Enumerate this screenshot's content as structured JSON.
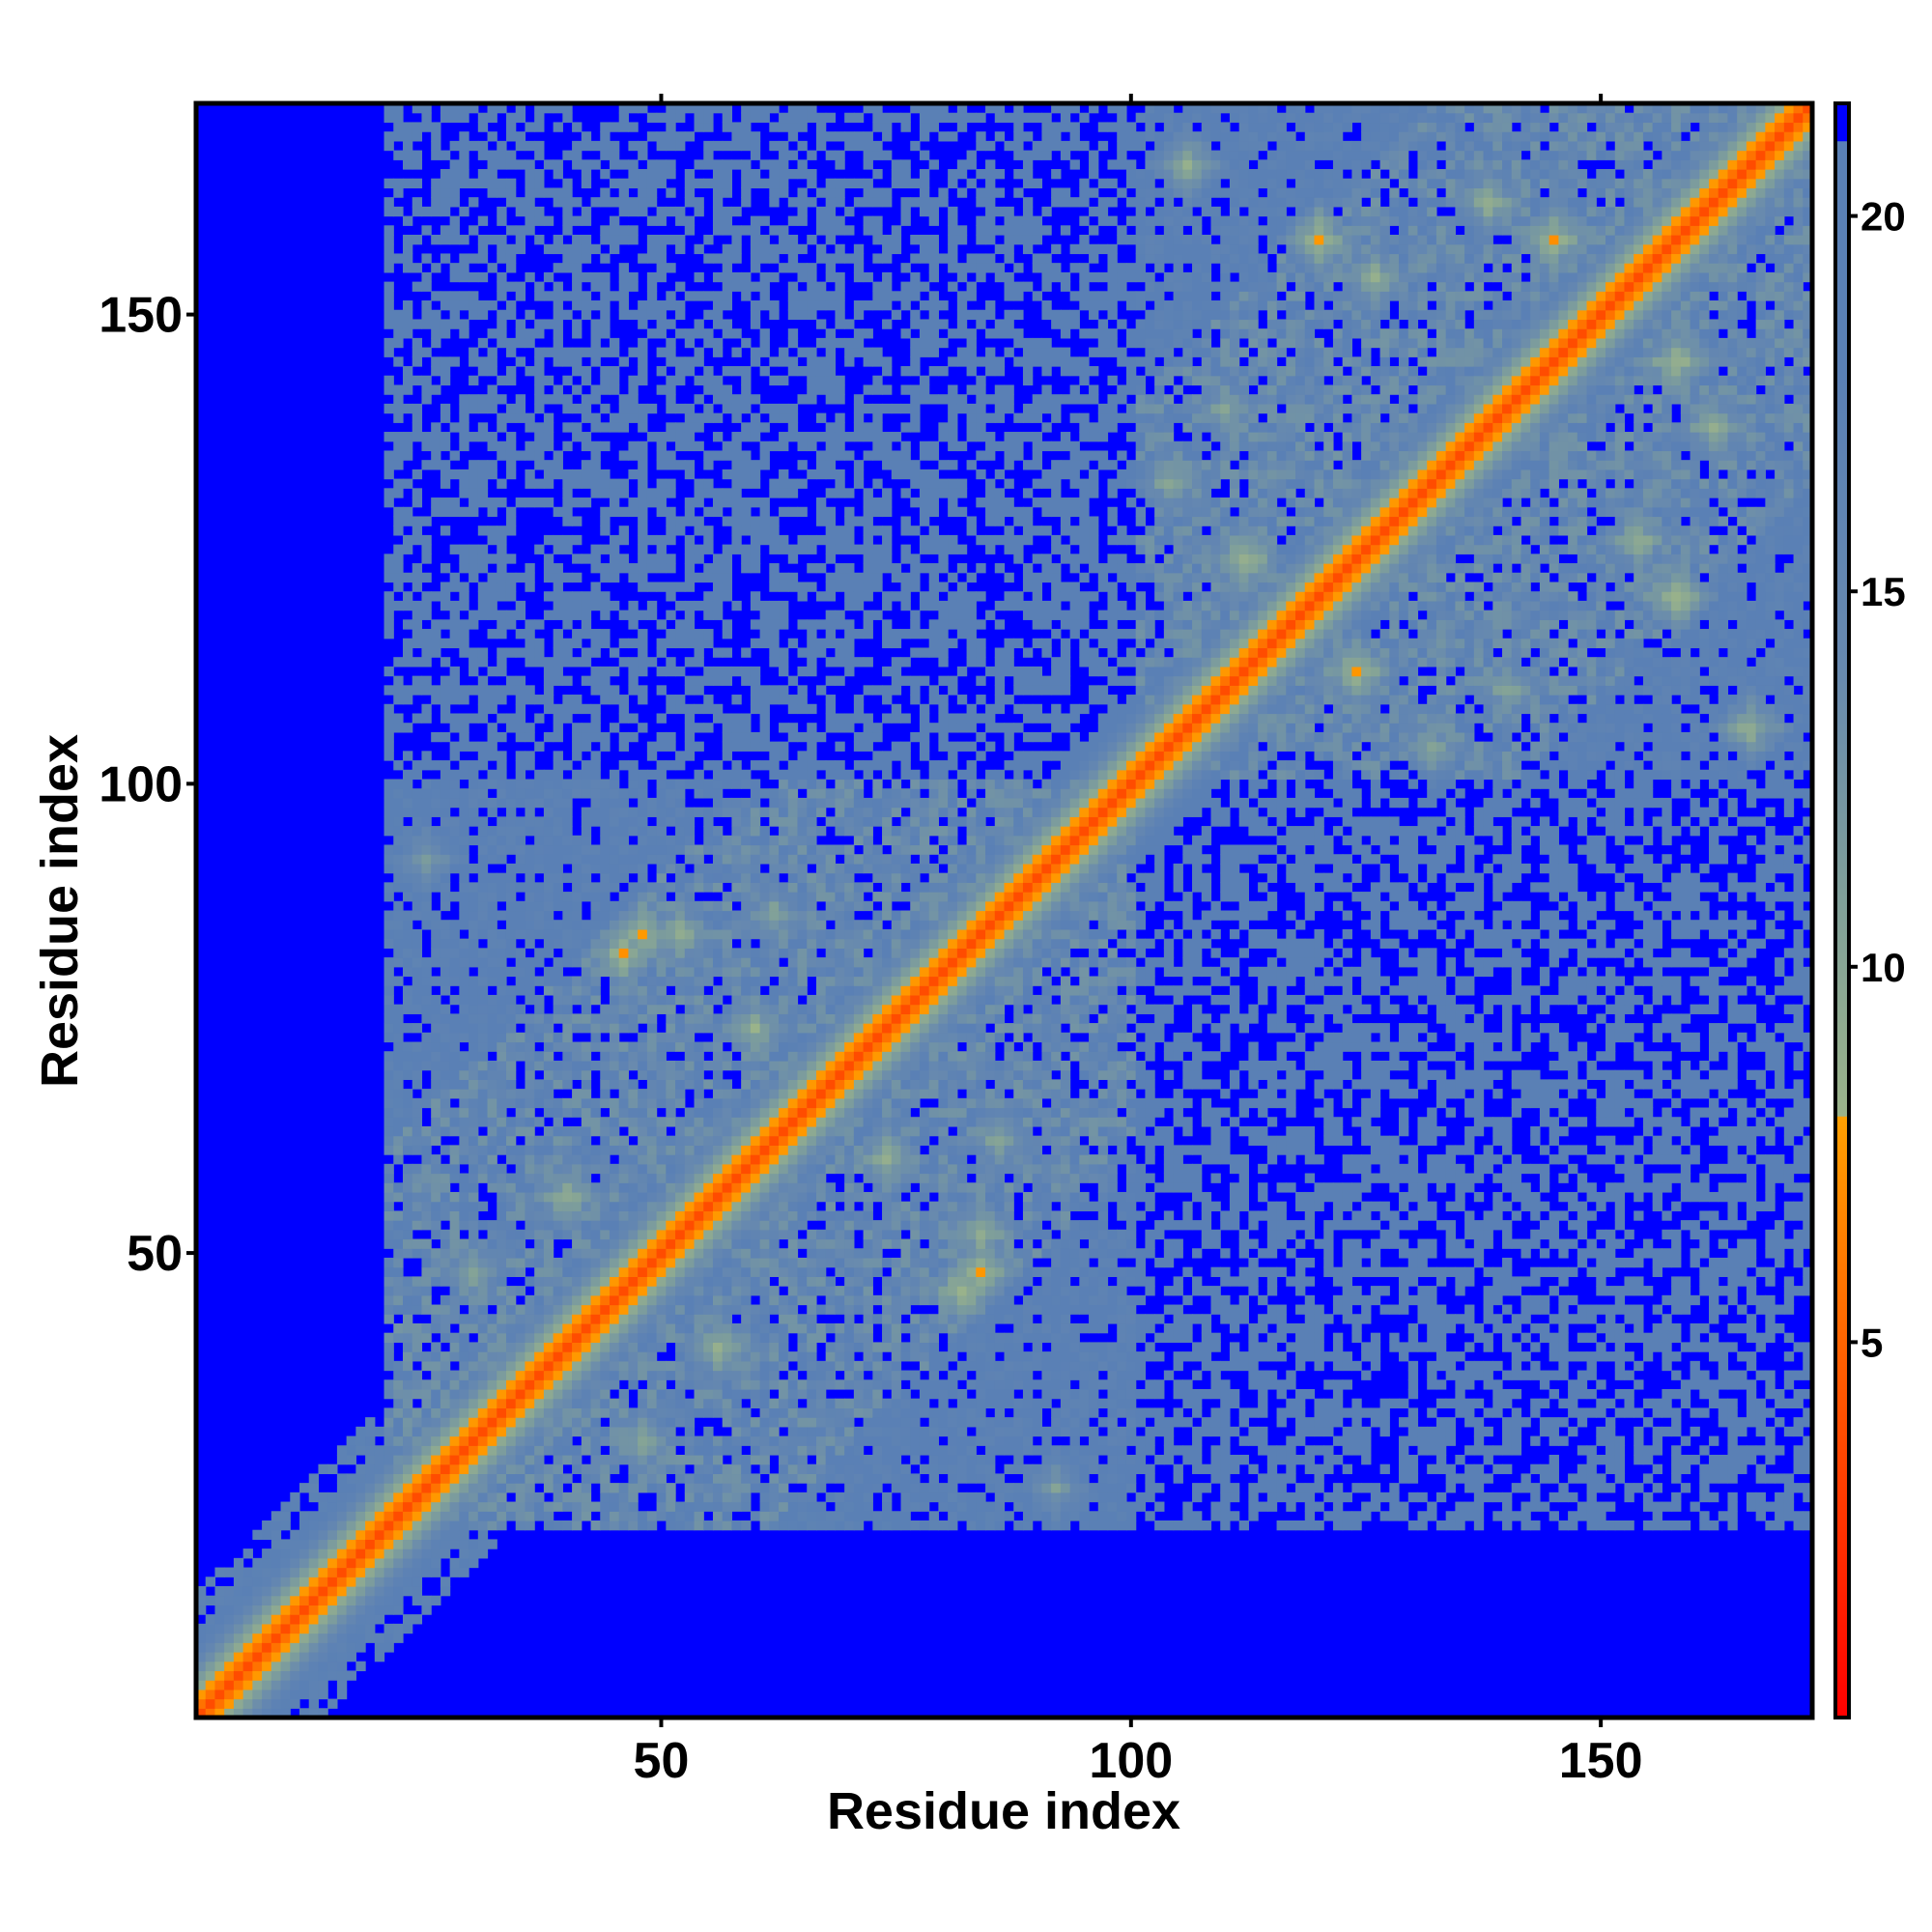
{
  "chart_data": {
    "type": "heatmap",
    "title": "",
    "xlabel": "Residue index",
    "ylabel": "Residue index",
    "xlim": [
      1,
      172
    ],
    "ylim": [
      1,
      172
    ],
    "n_residues": 172,
    "x_ticks": [
      50,
      100,
      150
    ],
    "y_ticks": [
      50,
      100,
      150
    ],
    "colorbar": {
      "range": [
        0,
        21.5
      ],
      "ticks": [
        5,
        10,
        15,
        20
      ],
      "stops": [
        {
          "value": 0,
          "color": "#ff0000"
        },
        {
          "value": 4.5,
          "color": "#ff5a00"
        },
        {
          "value": 8,
          "color": "#ffa000"
        },
        {
          "value": 8.01,
          "color": "#9bb38a"
        },
        {
          "value": 11,
          "color": "#7f9f9a"
        },
        {
          "value": 14,
          "color": "#6789af"
        },
        {
          "value": 18,
          "color": "#5a80b5"
        },
        {
          "value": 20.99,
          "color": "#5a80b5"
        },
        {
          "value": 21,
          "color": "#0000ff"
        }
      ]
    },
    "distance_cutoff": 21,
    "above_cutoff_color": "#0000ff",
    "structure": {
      "diagonal_value": 3.8,
      "backbone_distance_per_residue": 1.9,
      "domains": [
        {
          "range": [
            20,
            100
          ],
          "far_value": 18.5
        },
        {
          "range": [
            100,
            172
          ],
          "far_value": 18.5
        }
      ],
      "domain_contacts": [
        {
          "residues": [
            30,
            48
          ],
          "value": 9
        },
        {
          "residues": [
            46,
            82
          ],
          "value": 7
        },
        {
          "residues": [
            52,
            84
          ],
          "value": 8
        },
        {
          "residues": [
            62,
            86
          ],
          "value": 9
        },
        {
          "residues": [
            84,
            48
          ],
          "value": 7
        },
        {
          "residues": [
            40,
            56
          ],
          "value": 8
        },
        {
          "residues": [
            60,
            74
          ],
          "value": 8
        },
        {
          "residues": [
            25,
            92
          ],
          "value": 10
        },
        {
          "residues": [
            120,
            158
          ],
          "value": 7
        },
        {
          "residues": [
            106,
            166
          ],
          "value": 8
        },
        {
          "residues": [
            126,
            154
          ],
          "value": 8
        },
        {
          "residues": [
            138,
            162
          ],
          "value": 8
        },
        {
          "residues": [
            110,
            140
          ],
          "value": 9
        },
        {
          "residues": [
            145,
            158
          ],
          "value": 7
        },
        {
          "residues": [
            104,
            132
          ],
          "value": 9
        },
        {
          "residues": [
            112,
            124
          ],
          "value": 7
        }
      ],
      "inter_domain_contact_fraction": 0.55,
      "inter_domain_value": 18.5,
      "terminal_region": [
        1,
        20
      ]
    }
  }
}
